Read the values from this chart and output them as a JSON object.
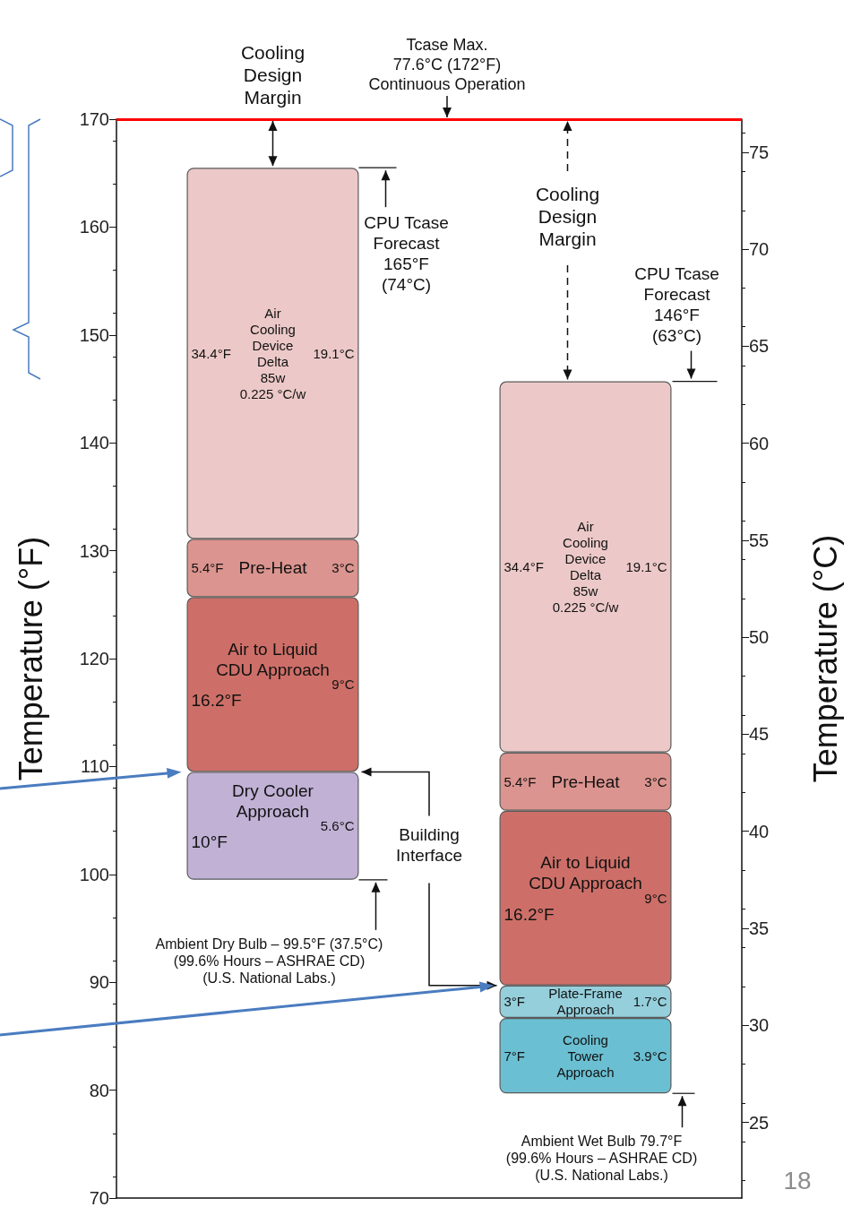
{
  "chart_data": {
    "type": "bar",
    "tick_labels": "y",
    "legend": false,
    "grid": false,
    "ylabel": "Temperature (°F)",
    "y2label": "Temperature (°C)",
    "categories": [
      null,
      null
    ],
    "series": [
      {
        "name": "Dry Cooler\nApproach",
        "color": "#c0b1d5",
        "base": [
          99.5,
          null
        ],
        "values": [
          10,
          null
        ],
        "value_labels": [
          "10°F",
          null
        ]
      },
      {
        "name": "Cooling\nTower\nApproach",
        "color": "#6bbfd2",
        "base": [
          null,
          79.7
        ],
        "values": [
          null,
          7
        ],
        "value_labels": [
          null,
          "7°F"
        ]
      },
      {
        "name": "Plate-Frame\nApproach",
        "color": "#95cfdc",
        "base": [
          null,
          86.7
        ],
        "values": [
          null,
          3
        ],
        "value_labels": [
          null,
          "3°F"
        ]
      },
      {
        "name": "Air to Liquid\nCDU Approach",
        "color": "#cd6f68",
        "base": [
          109.5,
          89.7
        ],
        "values": [
          16.2,
          16.2
        ],
        "value_labels": [
          "16.2°F",
          "16.2°F"
        ]
      },
      {
        "name": "Pre-Heat",
        "color": "#db948f",
        "base": [
          125.7,
          105.9
        ],
        "values": [
          5.4,
          5.4
        ],
        "value_labels": [
          "5.4°F",
          "5.4°F"
        ]
      },
      {
        "name": "Air\nCooling\nDevice\nDelta\n85w\n0.225 °C/w",
        "color": "#ecc9c8",
        "base": [
          131.1,
          111.3
        ],
        "values": [
          34.4,
          34.4
        ],
        "value_labels": [
          "34.4°F",
          "34.4°F"
        ]
      }
    ],
    "ylim": [
      70,
      170
    ],
    "yticks": [
      70,
      80,
      90,
      100,
      110,
      120,
      130,
      140,
      150,
      160,
      170
    ],
    "y2lim": [
      21.1,
      76.7
    ],
    "y2ticks": [
      25,
      30,
      35,
      40,
      45,
      50,
      55,
      60,
      65,
      70,
      75
    ],
    "ref_lines": [
      {
        "axis": "y",
        "value": 170,
        "label": "Tcase Max.\n77.6°C (172°F)\nContinuous Operation",
        "color": "#ff0000"
      }
    ],
    "annotations": [
      "CPU Tcase\nForecast\n165°F\n(74°C)",
      "CPU Tcase\nForecast\n146°F\n(63°C)",
      "Ambient Dry Bulb – 99.5°F (37.5°C)\n(99.6% Hours – ASHRAE CD)\n(U.S. National Labs.)",
      "Ambient Wet Bulb 79.7°F\n(99.6% Hours – ASHRAE CD)\n(U.S. National Labs.)",
      "Cooling\nDesign\nMargin",
      "Cooling\nDesign\nMargin",
      "Building\nInterface",
      "18",
      "5.6°C",
      "9°C",
      "3°C",
      "19.1°C",
      "3.9°C",
      "1.7°C",
      "9°C",
      "3°C",
      "19.1°C"
    ]
  }
}
